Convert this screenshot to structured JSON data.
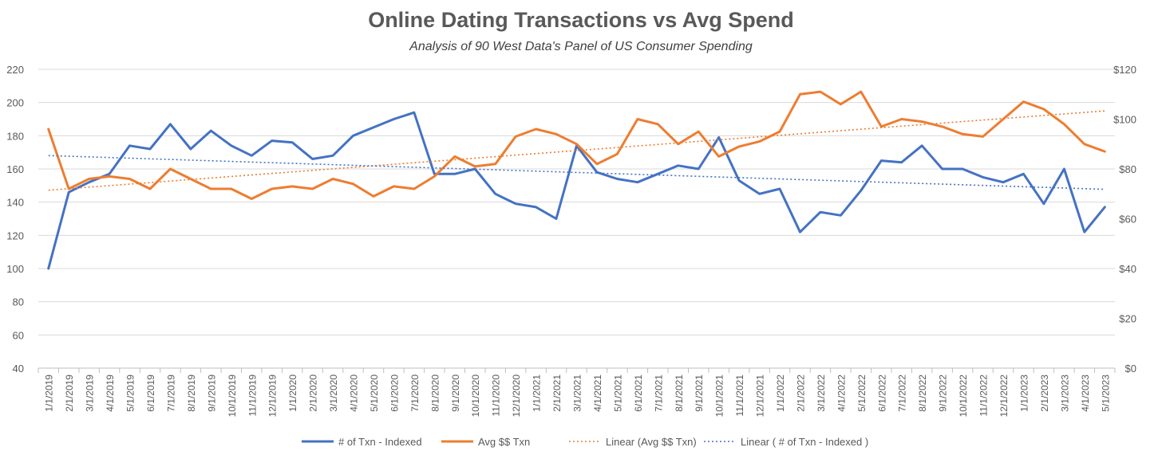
{
  "chart_data": {
    "type": "line",
    "title": "Online Dating Transactions vs Avg Spend",
    "subtitle": "Analysis of 90 West Data's Panel of US Consumer Spending",
    "categories": [
      "1/1/2019",
      "2/1/2019",
      "3/1/2019",
      "4/1/2019",
      "5/1/2019",
      "6/1/2019",
      "7/1/2019",
      "8/1/2019",
      "9/1/2019",
      "10/1/2019",
      "11/1/2019",
      "12/1/2019",
      "1/1/2020",
      "2/1/2020",
      "3/1/2020",
      "4/1/2020",
      "5/1/2020",
      "6/1/2020",
      "7/1/2020",
      "8/1/2020",
      "9/1/2020",
      "10/1/2020",
      "11/1/2020",
      "12/1/2020",
      "1/1/2021",
      "2/1/2021",
      "3/1/2021",
      "4/1/2021",
      "5/1/2021",
      "6/1/2021",
      "7/1/2021",
      "8/1/2021",
      "9/1/2021",
      "10/1/2021",
      "11/1/2021",
      "12/1/2021",
      "1/1/2022",
      "2/1/2022",
      "3/1/2022",
      "4/1/2022",
      "5/1/2022",
      "6/1/2022",
      "7/1/2022",
      "8/1/2022",
      "9/1/2022",
      "10/1/2022",
      "11/1/2022",
      "12/1/2022",
      "1/1/2023",
      "2/1/2023",
      "3/1/2023",
      "4/1/2023",
      "5/1/2023"
    ],
    "y_left": {
      "min": 40,
      "max": 220,
      "step": 20,
      "ticks": [
        "40",
        "60",
        "80",
        "100",
        "120",
        "140",
        "160",
        "180",
        "200",
        "220"
      ]
    },
    "y_right": {
      "min": 0,
      "max": 120,
      "step": 20,
      "ticks": [
        "$0",
        "$20",
        "$40",
        "$60",
        "$80",
        "$100",
        "$120"
      ]
    },
    "grid": true,
    "legend_position": "bottom",
    "series": [
      {
        "name": "# of Txn - Indexed",
        "axis": "left",
        "color": "#4472C4",
        "style": "solid",
        "values": [
          100,
          146,
          152,
          157,
          174,
          172,
          187,
          172,
          183,
          174,
          168,
          177,
          176,
          166,
          168,
          180,
          185,
          190,
          194,
          157,
          157,
          160,
          145,
          139,
          137,
          130,
          174,
          158,
          154,
          152,
          157,
          162,
          160,
          179,
          153,
          145,
          148,
          122,
          134,
          132,
          147,
          165,
          164,
          174,
          160,
          160,
          155,
          152,
          157,
          139,
          160,
          122,
          137
        ]
      },
      {
        "name": "Avg $$ Txn",
        "axis": "right",
        "color": "#ED7D31",
        "style": "solid",
        "values": [
          96,
          72,
          76,
          77,
          76,
          72,
          80,
          76,
          72,
          72,
          68,
          72,
          73,
          72,
          76,
          74,
          69,
          73,
          72,
          77,
          85,
          81,
          82,
          93,
          96,
          94,
          90,
          82,
          86,
          100,
          98,
          90,
          95,
          85,
          89,
          91,
          95,
          110,
          111,
          106,
          111,
          97,
          100,
          99,
          97,
          94,
          93,
          100,
          107,
          104,
          98,
          90,
          87
        ]
      },
      {
        "name": "Linear (Avg $$ Txn)",
        "axis": "right",
        "color": "#ED7D31",
        "style": "dotted",
        "trend_of": 1
      },
      {
        "name": "Linear ( # of Txn - Indexed )",
        "axis": "left",
        "color": "#4472C4",
        "style": "dotted",
        "trend_of": 0
      }
    ]
  }
}
